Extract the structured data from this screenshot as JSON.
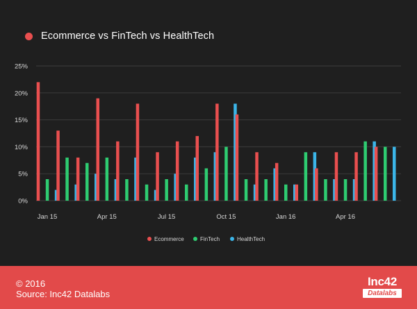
{
  "chart_data": {
    "type": "bar",
    "title": "Ecommerce vs FinTech vs HealthTech",
    "title_dot_color": "#e94f4f",
    "categories": [
      "Jan 15",
      "Feb 15",
      "Mar 15",
      "Apr 15",
      "May 15",
      "Jun 15",
      "Jul 15",
      "Aug 15",
      "Sep 15",
      "Oct 15",
      "Nov 15",
      "Dec 15",
      "Jan 16",
      "Feb 16",
      "Mar 16",
      "Apr 16",
      "May 16",
      "Jun 16"
    ],
    "x_tick_labels": [
      "Jan 15",
      "",
      "",
      "Apr 15",
      "",
      "",
      "Jul 15",
      "",
      "",
      "Oct 15",
      "",
      "",
      "Jan 16",
      "",
      "",
      "Apr 16",
      "",
      ""
    ],
    "series": [
      {
        "name": "Ecommerce",
        "color": "#e94f4f",
        "values": [
          22,
          13,
          8,
          19,
          11,
          18,
          9,
          11,
          12,
          18,
          16,
          9,
          7,
          3,
          6,
          9,
          9,
          10
        ]
      },
      {
        "name": "FinTech",
        "color": "#2ecc71",
        "values": [
          4,
          8,
          7,
          8,
          4,
          3,
          4,
          3,
          6,
          10,
          4,
          4,
          3,
          9,
          4,
          4,
          11,
          10
        ]
      },
      {
        "name": "HealthTech",
        "color": "#3bb5e8",
        "values": [
          2,
          3,
          5,
          4,
          8,
          2,
          5,
          8,
          9,
          18,
          3,
          6,
          3,
          9,
          4,
          4,
          11,
          10
        ]
      }
    ],
    "y_ticks": [
      "0%",
      "5%",
      "10%",
      "15%",
      "20%",
      "25%"
    ],
    "ylim": [
      0,
      25
    ],
    "grid": true,
    "legend_position": "bottom-center"
  },
  "footer": {
    "copyright": "© 2016",
    "source": "Source: Inc42 Datalabs",
    "logo_top": "Inc42",
    "logo_bottom": "Datalabs",
    "background_color": "#e24a4a",
    "logo_bottom_text_color": "#e24a4a"
  }
}
